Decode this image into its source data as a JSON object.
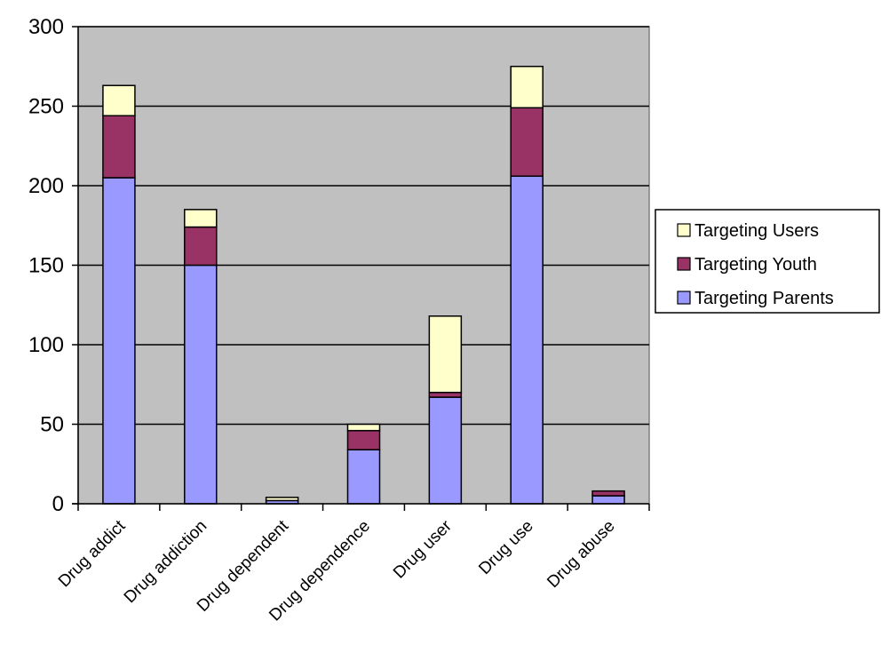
{
  "chart_data": {
    "type": "bar",
    "stacked": true,
    "categories": [
      "Drug addict",
      "Drug addiction",
      "Drug dependent",
      "Drug dependence",
      "Drug user",
      "Drug use",
      "Drug abuse"
    ],
    "series": [
      {
        "name": "Targeting Parents",
        "color": "#9999ff",
        "values": [
          205,
          150,
          2,
          34,
          67,
          206,
          5
        ]
      },
      {
        "name": "Targeting Youth",
        "color": "#993366",
        "values": [
          39,
          24,
          0,
          12,
          3,
          43,
          3
        ]
      },
      {
        "name": "Targeting Users",
        "color": "#ffffcc",
        "values": [
          19,
          11,
          2,
          4,
          48,
          26,
          0
        ]
      }
    ],
    "legend_order": [
      "Targeting Users",
      "Targeting Youth",
      "Targeting Parents"
    ],
    "yticks": [
      0,
      50,
      100,
      150,
      200,
      250,
      300
    ],
    "ylim": [
      0,
      300
    ],
    "title": "",
    "xlabel": "",
    "ylabel": "",
    "grid": "horizontal",
    "plot_background": "#c0c0c0",
    "legend_position": "right"
  }
}
